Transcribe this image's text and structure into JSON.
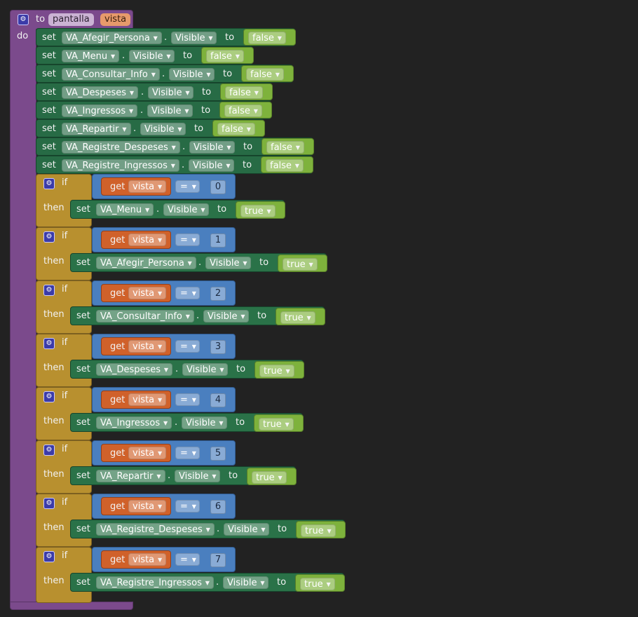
{
  "procedure": {
    "keyword_to": "to",
    "name": "pantalla",
    "param": "vista",
    "keyword_do": "do"
  },
  "keywords": {
    "set": "set",
    "to": "to",
    "dot": ".",
    "if": "if",
    "then": "then",
    "get": "get"
  },
  "initial_sets": [
    {
      "component": "VA_Afegir_Persona",
      "property": "Visible",
      "value": "false"
    },
    {
      "component": "VA_Menu",
      "property": "Visible",
      "value": "false"
    },
    {
      "component": "VA_Consultar_Info",
      "property": "Visible",
      "value": "false"
    },
    {
      "component": "VA_Despeses",
      "property": "Visible",
      "value": "false"
    },
    {
      "component": "VA_Ingressos",
      "property": "Visible",
      "value": "false"
    },
    {
      "component": "VA_Repartir",
      "property": "Visible",
      "value": "false"
    },
    {
      "component": "VA_Registre_Despeses",
      "property": "Visible",
      "value": "false"
    },
    {
      "component": "VA_Registre_Ingressos",
      "property": "Visible",
      "value": "false"
    }
  ],
  "if_blocks": [
    {
      "var": "vista",
      "op": "=",
      "number": "0",
      "component": "VA_Menu",
      "property": "Visible",
      "value": "true"
    },
    {
      "var": "vista",
      "op": "=",
      "number": "1",
      "component": "VA_Afegir_Persona",
      "property": "Visible",
      "value": "true"
    },
    {
      "var": "vista",
      "op": "=",
      "number": "2",
      "component": "VA_Consultar_Info",
      "property": "Visible",
      "value": "true"
    },
    {
      "var": "vista",
      "op": "=",
      "number": "3",
      "component": "VA_Despeses",
      "property": "Visible",
      "value": "true"
    },
    {
      "var": "vista",
      "op": "=",
      "number": "4",
      "component": "VA_Ingressos",
      "property": "Visible",
      "value": "true"
    },
    {
      "var": "vista",
      "op": "=",
      "number": "5",
      "component": "VA_Repartir",
      "property": "Visible",
      "value": "true"
    },
    {
      "var": "vista",
      "op": "=",
      "number": "6",
      "component": "VA_Registre_Despeses",
      "property": "Visible",
      "value": "true"
    },
    {
      "var": "vista",
      "op": "=",
      "number": "7",
      "component": "VA_Registre_Ingressos",
      "property": "Visible",
      "value": "true"
    }
  ],
  "colors": {
    "procedure": "#7b4a8c",
    "setter": "#276b45",
    "control": "#b8902f",
    "math": "#4a7fbf",
    "variable": "#d0612a",
    "logic": "#7eb23c",
    "background": "#222222"
  },
  "icons": {
    "mutator": "gear-icon",
    "dropdown": "chevron-down-icon"
  }
}
